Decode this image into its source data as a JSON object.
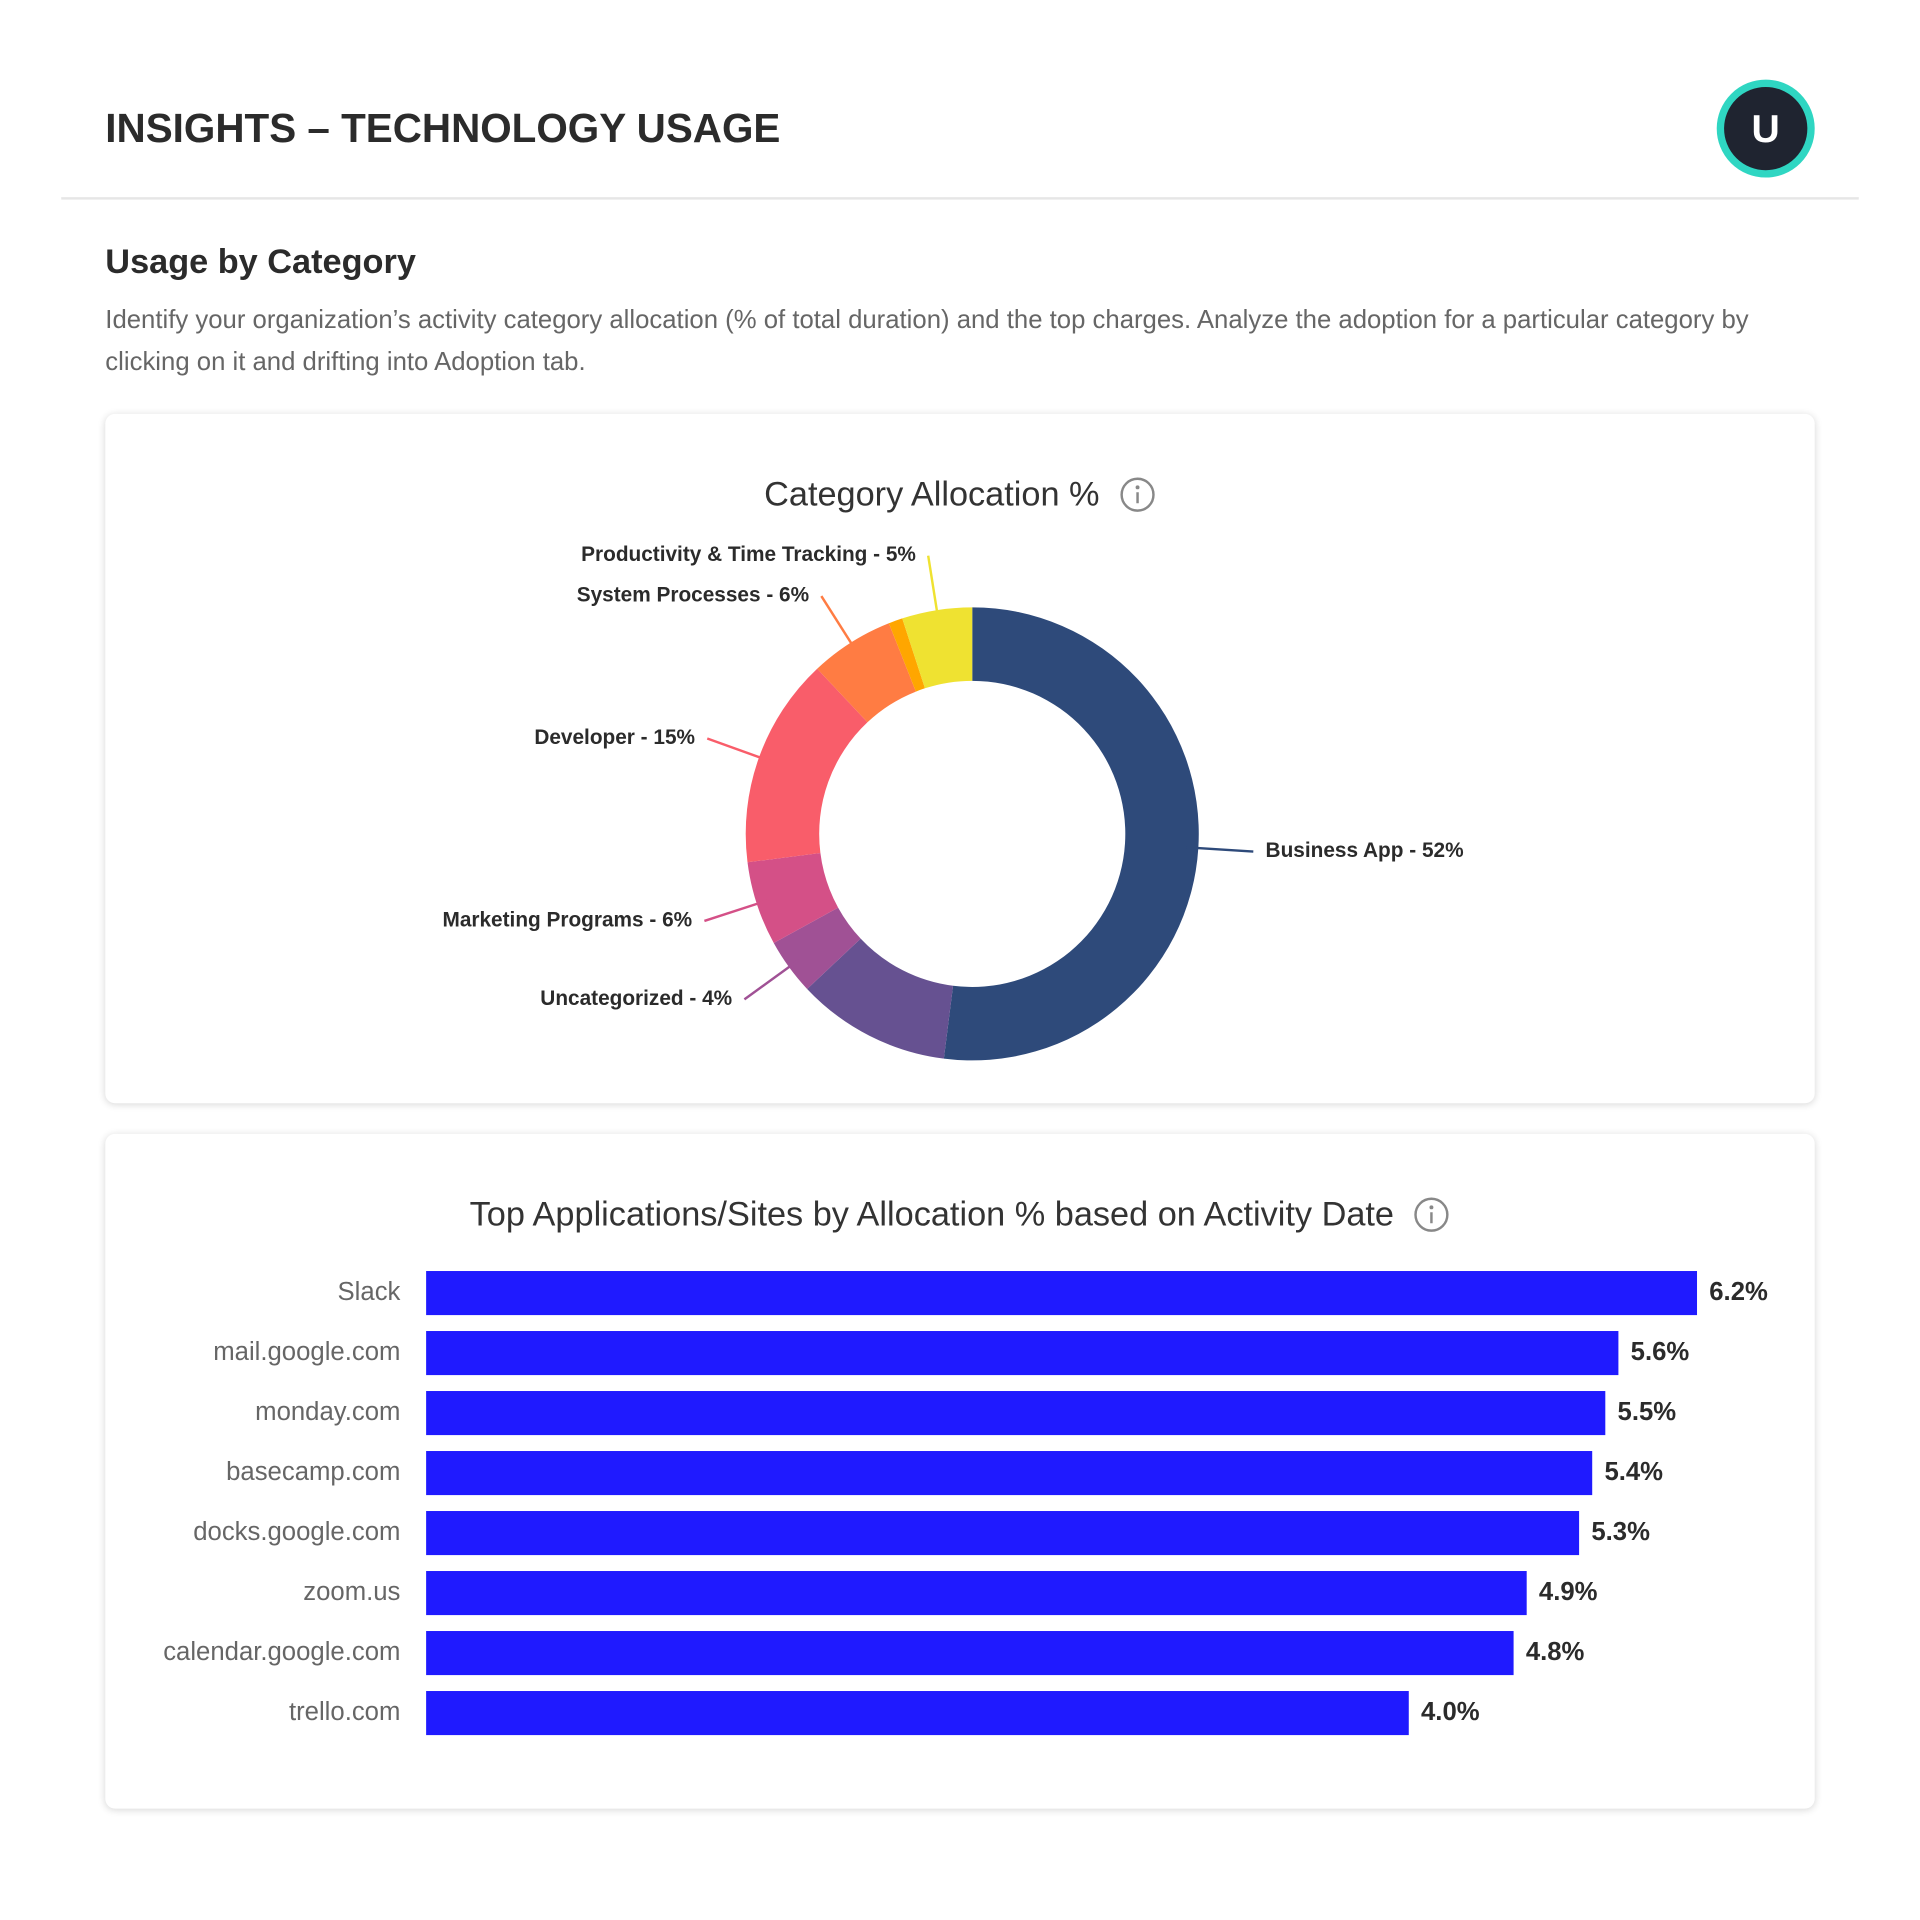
{
  "header": {
    "title": "INSIGHTS – TECHNOLOGY USAGE",
    "avatar": "U"
  },
  "section": {
    "title": "Usage by Category",
    "description": "Identify your organization’s activity category allocation (% of total duration) and the top charges. Analyze the adoption for a particular category by clicking on it and drifting into Adoption tab."
  },
  "chart_data": [
    {
      "type": "pie",
      "title": "Category Allocation %",
      "values": [
        52,
        11,
        4,
        6,
        15,
        6,
        1,
        5
      ],
      "value_labels": [
        "Business App - 52%",
        null,
        "Uncategorized - 4%",
        "Marketing Programs - 6%",
        "Developer - 15%",
        "System Processes - 6%",
        null,
        "Productivity & Time Tracking - 5%"
      ],
      "colors": [
        "#2e4a7a",
        "#665191",
        "#a05195",
        "#d45087",
        "#f95d6a",
        "#ff7c43",
        "#ffa600",
        "#efe231"
      ]
    },
    {
      "type": "bar",
      "title": "Top Applications/Sites by Allocation % based on Activity Date",
      "categories": [
        "Slack",
        "mail.google.com",
        "monday.com",
        "basecamp.com",
        "docks.google.com",
        "zoom.us",
        "calendar.google.com",
        "trello.com"
      ],
      "values": [
        6.2,
        5.6,
        5.5,
        5.4,
        5.3,
        4.9,
        4.8,
        4.0
      ],
      "value_labels": [
        "6.2%",
        "5.6%",
        "5.5%",
        "5.4%",
        "5.3%",
        "4.9%",
        "4.8%",
        "4.0%"
      ],
      "color": "#1f1aff",
      "xlim": [
        -3.5,
        6.5
      ]
    }
  ]
}
